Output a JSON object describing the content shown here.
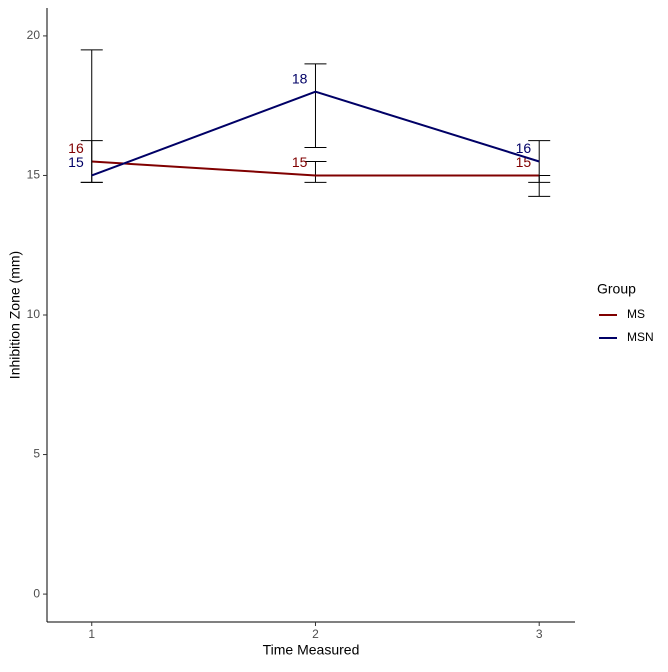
{
  "chart_data": {
    "type": "line",
    "x_label": "Time Measured",
    "y_label": "Inhibition Zone (mm)",
    "x": [
      1,
      2,
      3
    ],
    "series": [
      {
        "name": "MS",
        "color": "#800000",
        "values": [
          15.5,
          15,
          15
        ],
        "value_labels": [
          "16",
          "15",
          "15"
        ],
        "lower": [
          14.75,
          14.75,
          14.25
        ],
        "upper": [
          16.25,
          15.5,
          15
        ]
      },
      {
        "name": "MSN",
        "color": "#000066",
        "values": [
          15,
          18,
          15.5
        ],
        "value_labels": [
          "15",
          "18",
          "16"
        ],
        "lower": [
          14.75,
          16,
          14.75
        ],
        "upper": [
          19.5,
          19,
          16.25
        ]
      }
    ],
    "xlim": [
      0.8,
      3.16
    ],
    "ylim": [
      -1,
      21
    ],
    "xticks": [
      1,
      2,
      3
    ],
    "yticks": [
      0,
      5,
      10,
      15,
      20
    ],
    "legend_title": "Group",
    "legend": "right",
    "grid": false
  }
}
